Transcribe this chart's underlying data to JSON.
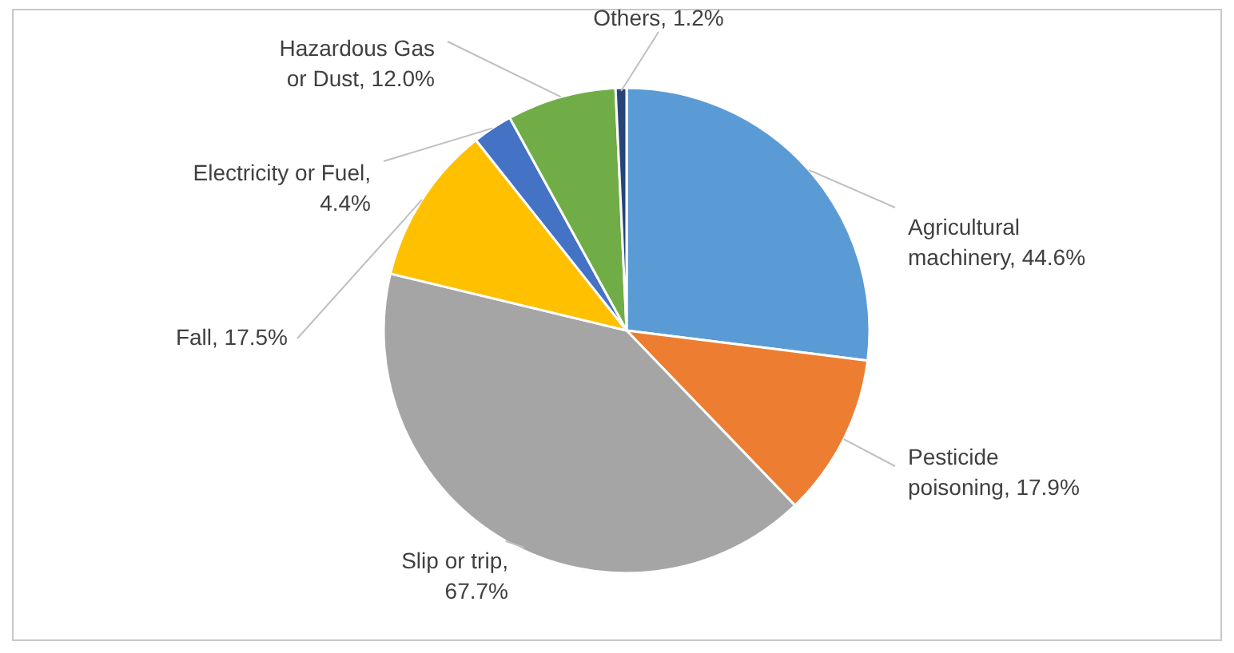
{
  "chart_data": {
    "type": "pie",
    "categories": [
      "Agricultural machinery, 44.6%",
      "Pesticide poisoning, 17.9%",
      "Slip or trip, 67.7%",
      "Fall, 17.5%",
      "Electricity or Fuel, 4.4%",
      "Hazardous Gas or Dust, 12.0%",
      "Others, 1.2%"
    ],
    "values": [
      44.6,
      17.9,
      67.7,
      17.5,
      4.4,
      12.0,
      1.2
    ],
    "colors": [
      "#5b9bd5",
      "#ed7d31",
      "#a5a5a5",
      "#ffc000",
      "#4472c4",
      "#70ad47",
      "#264478"
    ]
  }
}
